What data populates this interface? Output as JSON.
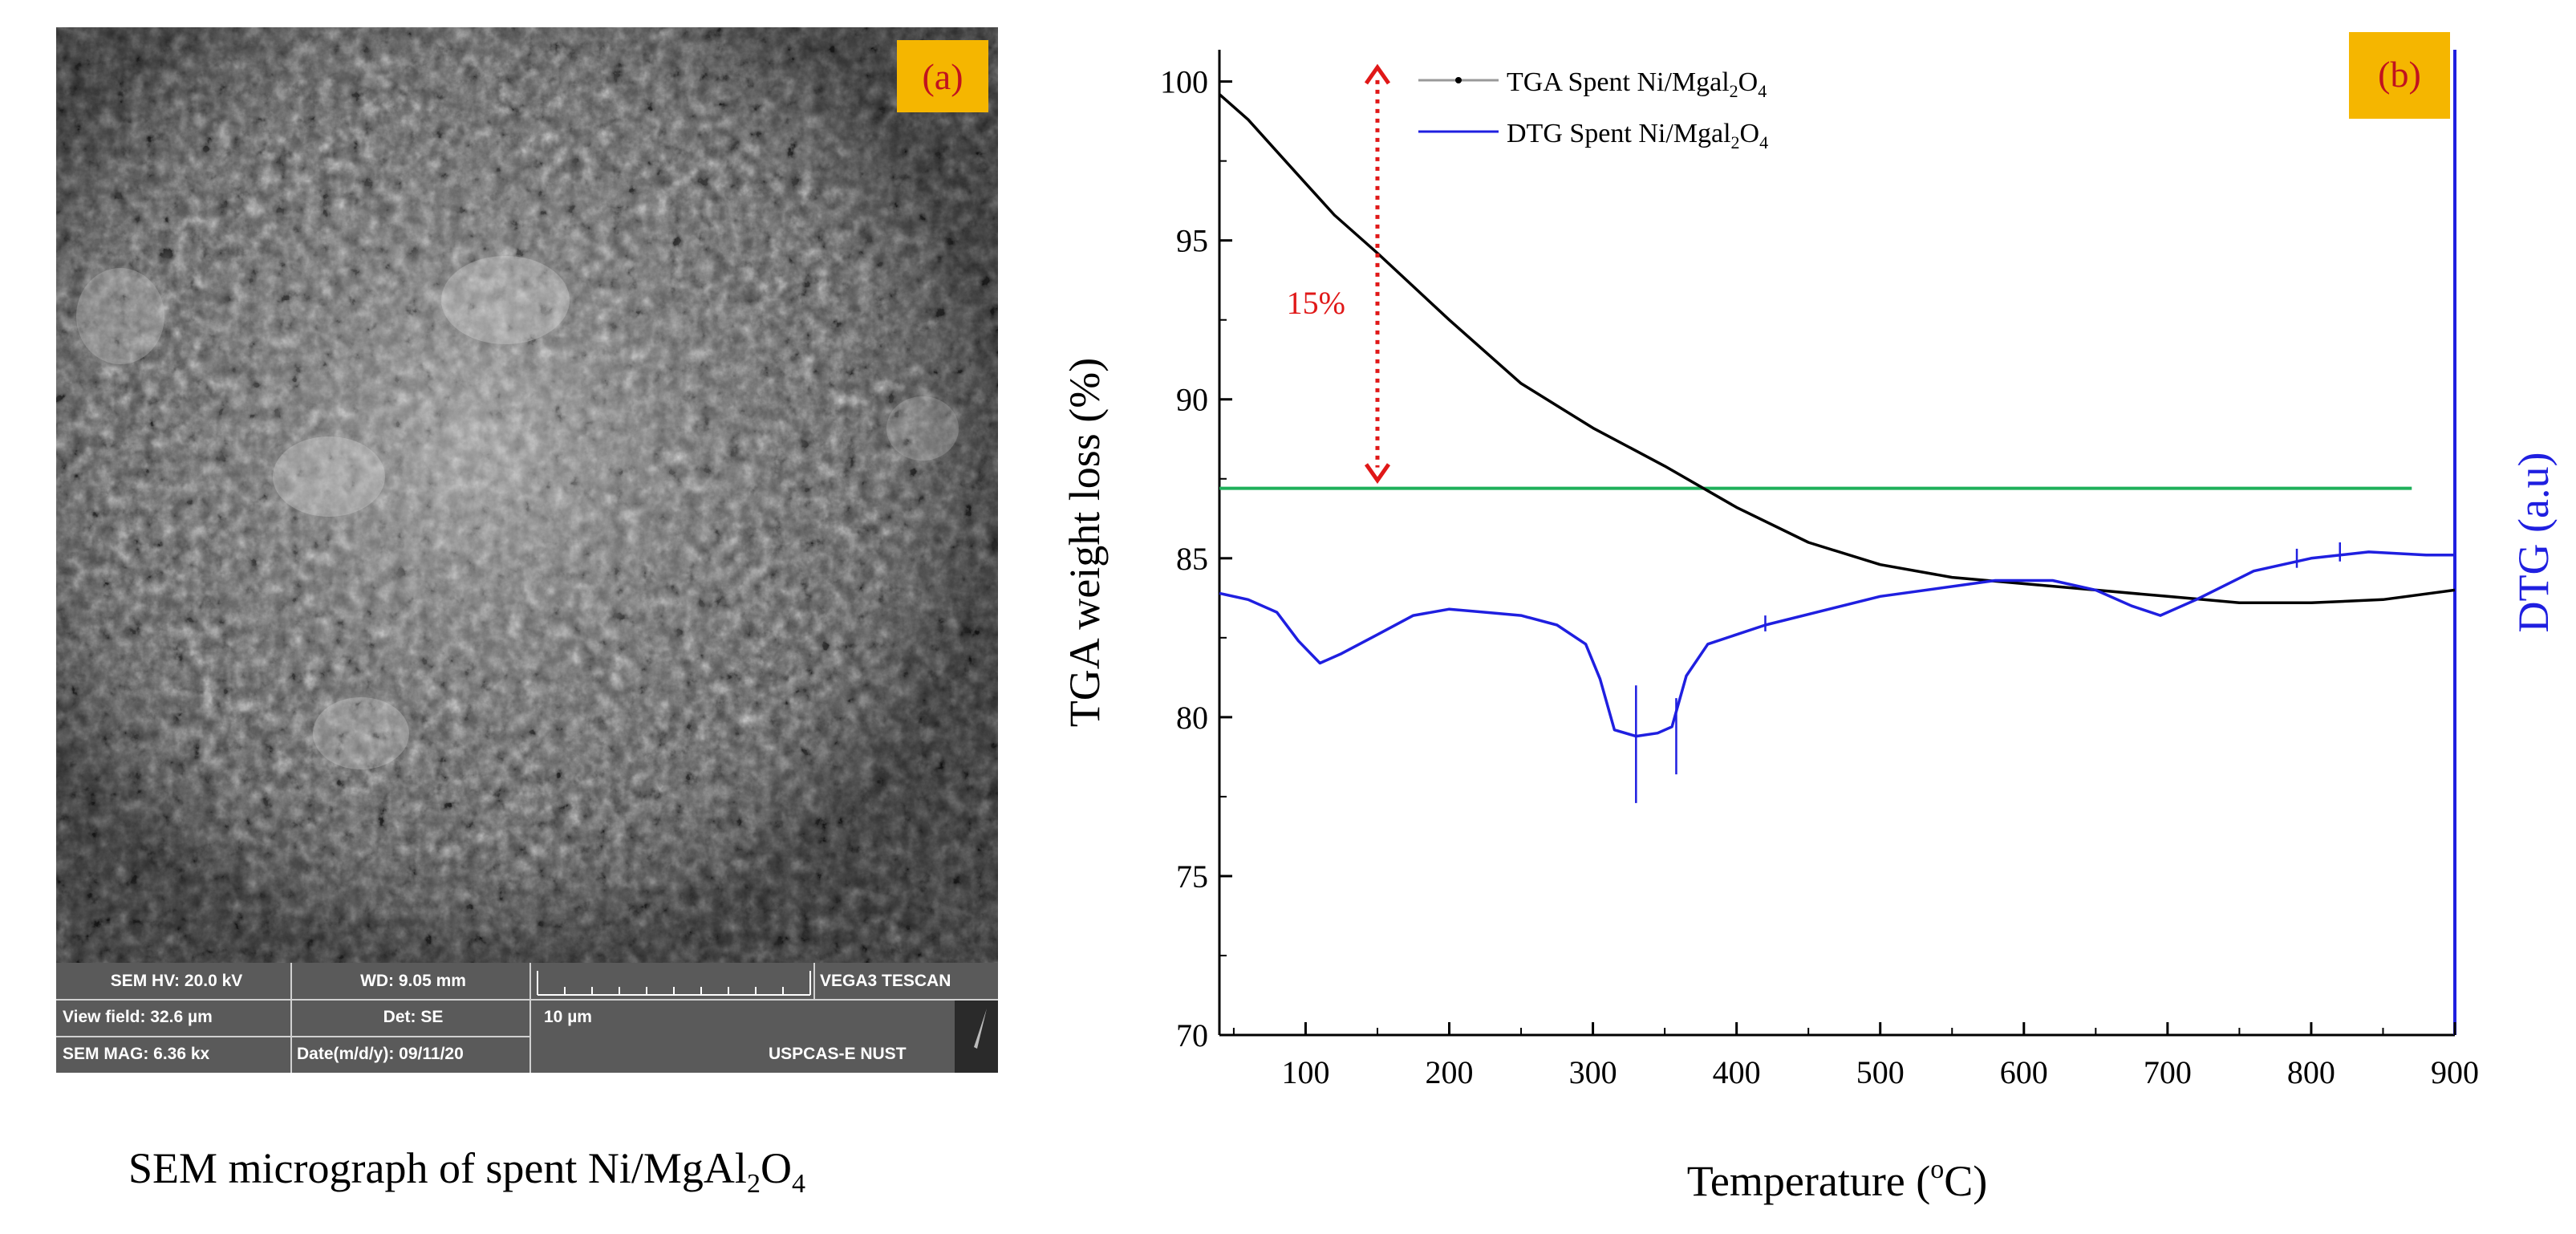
{
  "panel_a": {
    "label": "(a)",
    "caption_prefix": "SEM micrograph of spent Ni/MgAl",
    "caption_sub1": "2",
    "caption_mid": "O",
    "caption_sub2": "4",
    "info": {
      "hv": "SEM HV: 20.0 kV",
      "wd": "WD: 9.05 mm",
      "brand": "VEGA3 TESCAN",
      "view_field": "View field: 32.6 µm",
      "det": "Det: SE",
      "scale_label": "10 µm",
      "mag": "SEM MAG: 6.36 kx",
      "date": "Date(m/d/y): 09/11/20",
      "org": "USPCAS-E NUST"
    }
  },
  "chart_data": {
    "type": "line",
    "panel_label": "(b)",
    "xlabel_prefix": "Temperature (",
    "xlabel_sup": "o",
    "xlabel_suffix": "C)",
    "ylabel": "TGA weight loss (%)",
    "y2label": "DTG (a.u)",
    "xlim": [
      40,
      900
    ],
    "ylim": [
      70,
      101
    ],
    "xticks": [
      100,
      200,
      300,
      400,
      500,
      600,
      700,
      800,
      900
    ],
    "yticks": [
      70,
      75,
      80,
      85,
      90,
      95,
      100
    ],
    "annotation": {
      "text": "15%",
      "x": 150,
      "y_top": 100.8,
      "y_bottom": 87.2
    },
    "reference_line": {
      "y": 87.2,
      "x_start": 40,
      "x_end": 870,
      "color": "#1fb05a"
    },
    "legend": [
      {
        "label": "TGA Spent Ni/Mgal",
        "sub1": "2",
        "mid": "O",
        "sub2": "4",
        "color": "#000000"
      },
      {
        "label": "DTG Spent Ni/Mgal",
        "sub1": "2",
        "mid": "O",
        "sub2": "4",
        "color": "#1f1fe0"
      }
    ],
    "series": [
      {
        "name": "TGA Spent Ni/Mgal2O4",
        "color": "#000000",
        "x": [
          40,
          60,
          80,
          100,
          120,
          150,
          200,
          250,
          300,
          350,
          400,
          450,
          500,
          550,
          600,
          650,
          700,
          750,
          800,
          850,
          900
        ],
        "values": [
          99.6,
          98.8,
          97.8,
          96.8,
          95.8,
          94.6,
          92.5,
          90.5,
          89.1,
          87.9,
          86.6,
          85.5,
          84.8,
          84.4,
          84.2,
          84.0,
          83.8,
          83.6,
          83.6,
          83.7,
          84.0
        ]
      },
      {
        "name": "DTG Spent Ni/Mgal2O4",
        "color": "#1f1fe0",
        "x": [
          40,
          60,
          80,
          95,
          110,
          125,
          150,
          175,
          200,
          225,
          250,
          275,
          295,
          305,
          315,
          330,
          345,
          355,
          365,
          380,
          420,
          500,
          580,
          620,
          650,
          675,
          695,
          720,
          760,
          800,
          840,
          880,
          900
        ],
        "values": [
          83.9,
          83.7,
          83.3,
          82.4,
          81.7,
          82.0,
          82.6,
          83.2,
          83.4,
          83.3,
          83.2,
          82.9,
          82.3,
          81.2,
          79.6,
          79.4,
          79.5,
          79.7,
          81.3,
          82.3,
          82.9,
          83.8,
          84.3,
          84.3,
          84.0,
          83.5,
          83.2,
          83.7,
          84.6,
          85.0,
          85.2,
          85.1,
          85.1
        ]
      }
    ]
  }
}
